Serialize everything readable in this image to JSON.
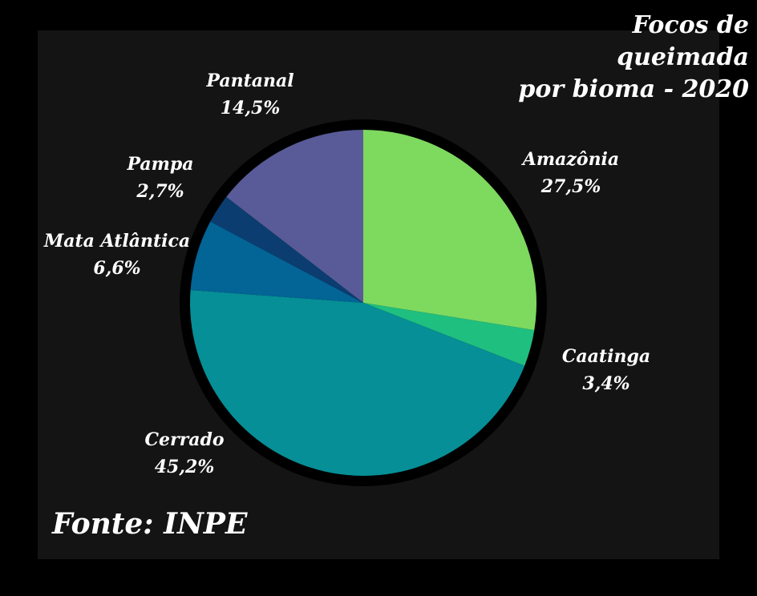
{
  "title_line1": "Focos de queimada",
  "title_line2": "por bioma - 2020",
  "source": "Fonte: INPE",
  "chart_data": {
    "type": "pie",
    "title": "Focos de queimada por bioma - 2020",
    "start_angle_deg": 0,
    "direction": "clockwise",
    "slices": [
      {
        "label": "Amazônia",
        "value": 27.5,
        "value_label": "27,5%",
        "color": "#7ED95F"
      },
      {
        "label": "Caatinga",
        "value": 3.4,
        "value_label": "3,4%",
        "color": "#1FBF80"
      },
      {
        "label": "Cerrado",
        "value": 45.2,
        "value_label": "45,2%",
        "color": "#068F96"
      },
      {
        "label": "Mata Atlântica",
        "value": 6.6,
        "value_label": "6,6%",
        "color": "#036496"
      },
      {
        "label": "Pampa",
        "value": 2.7,
        "value_label": "2,7%",
        "color": "#0B3D70"
      },
      {
        "label": "Pantanal",
        "value": 14.5,
        "value_label": "14,5%",
        "color": "#585B97"
      }
    ]
  }
}
